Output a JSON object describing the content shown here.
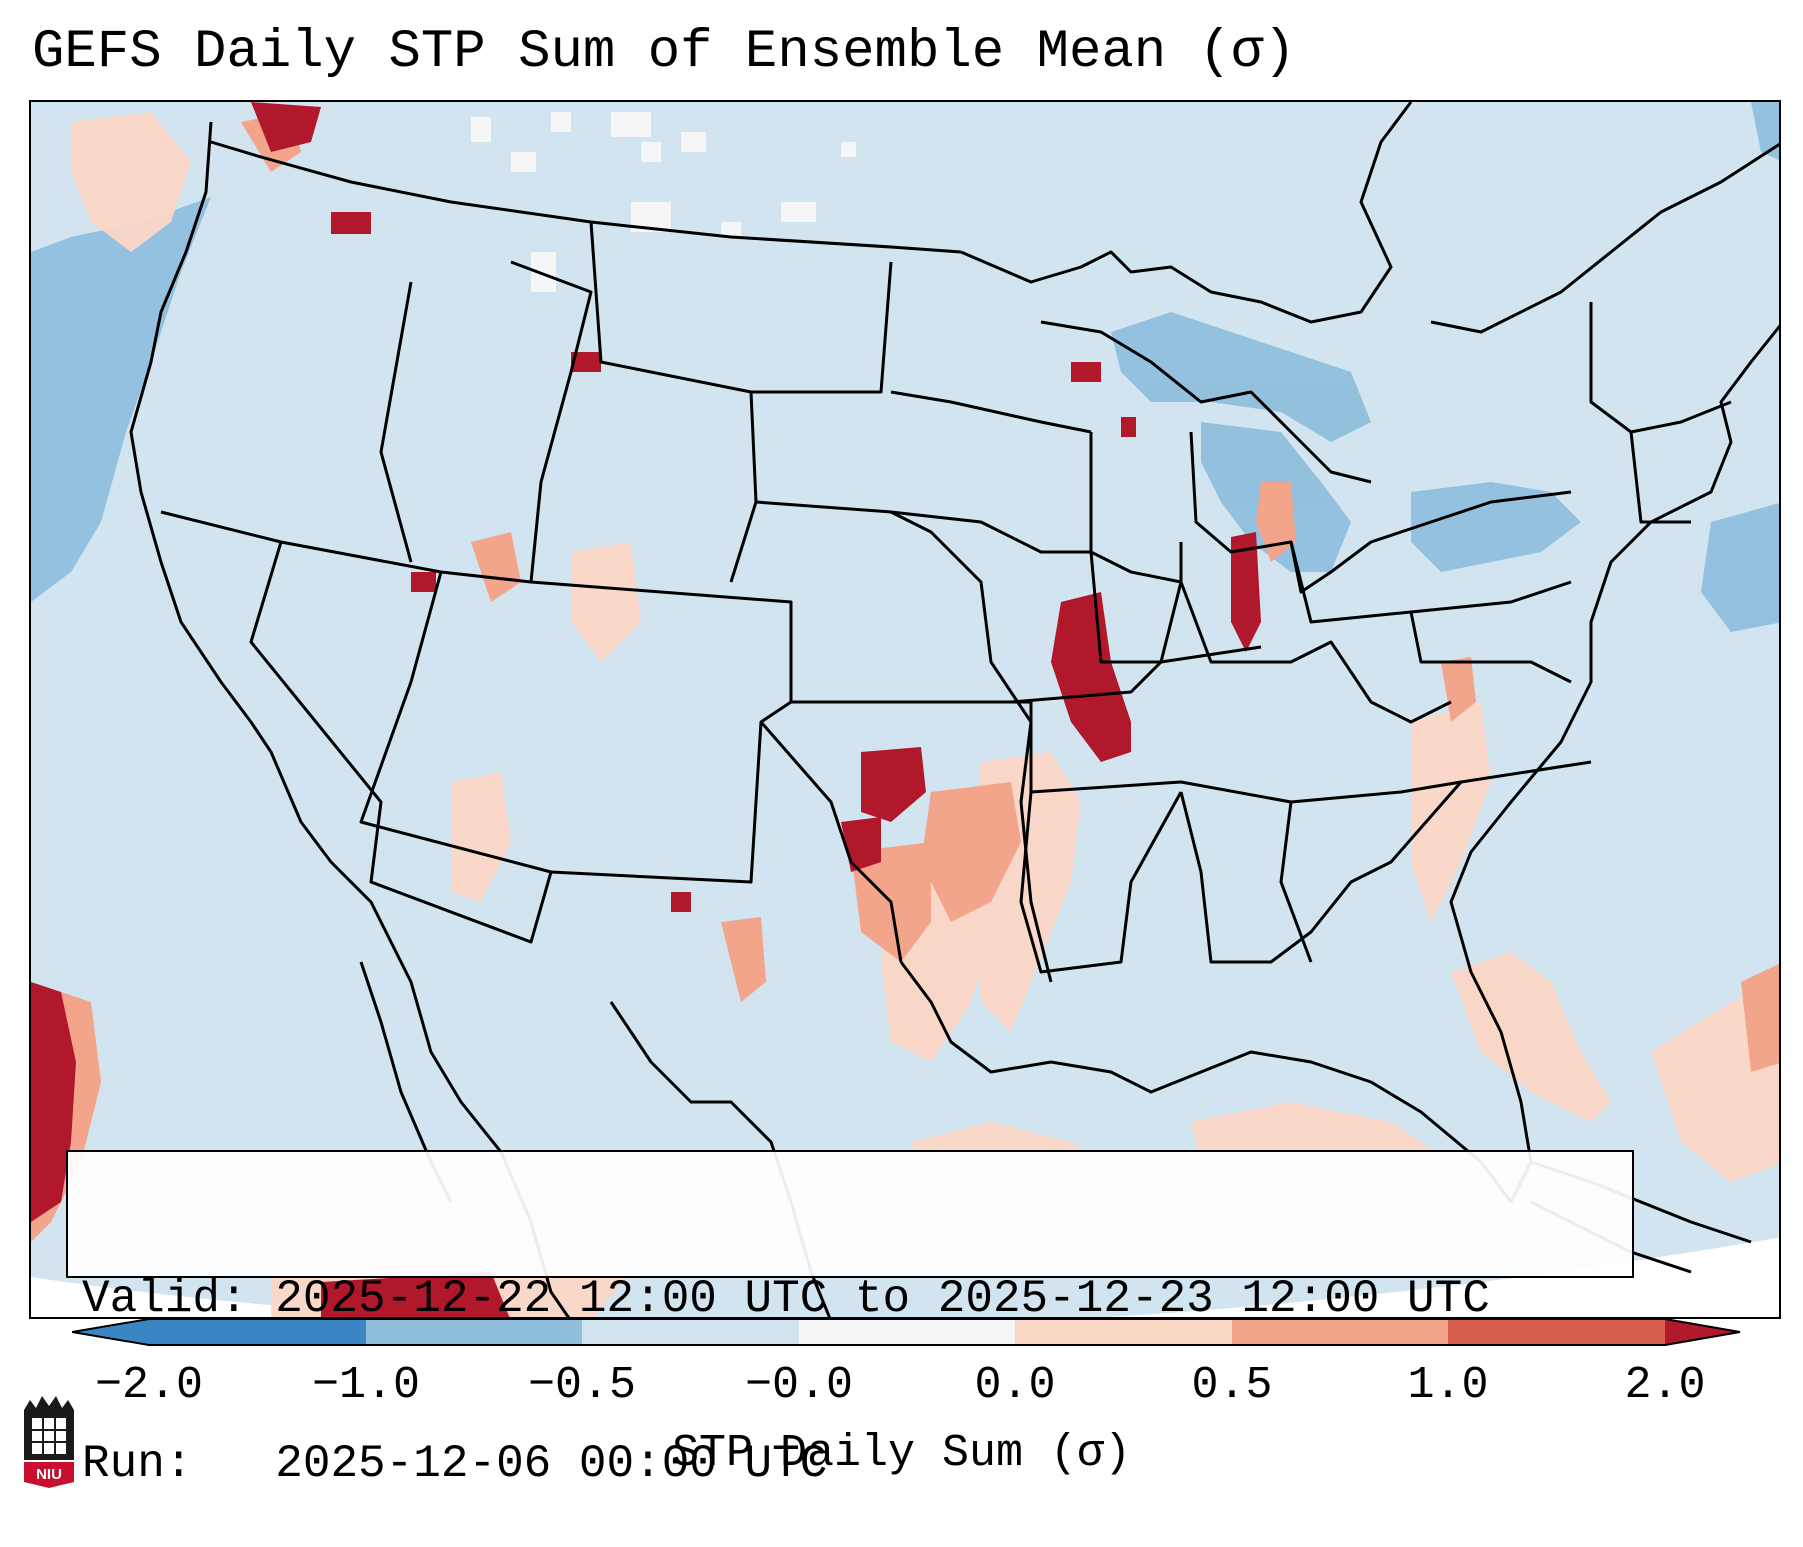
{
  "title": "GEFS Daily STP Sum of Ensemble Mean (σ)",
  "info": {
    "valid": "Valid: 2025-12-22 12:00 UTC to 2025-12-23 12:00 UTC",
    "run": "Run:   2025-12-06 00:00 UTC"
  },
  "colorbar": {
    "label": "STP Daily Sum (σ)",
    "ticks": [
      "−2.0",
      "−1.0",
      "−0.5",
      "−0.0",
      "0.0",
      "0.5",
      "1.0",
      "2.0"
    ],
    "colors": [
      "#3a86c4",
      "#8fbfdd",
      "#d1e4f0",
      "#f6f6f6",
      "#fbd7c6",
      "#f2a58a",
      "#d6604d",
      "#b2182b"
    ],
    "extend": "both"
  },
  "logo": {
    "text": "NIU"
  },
  "map": {
    "background_color": "#d1e4f0",
    "outline_color": "#000000"
  }
}
